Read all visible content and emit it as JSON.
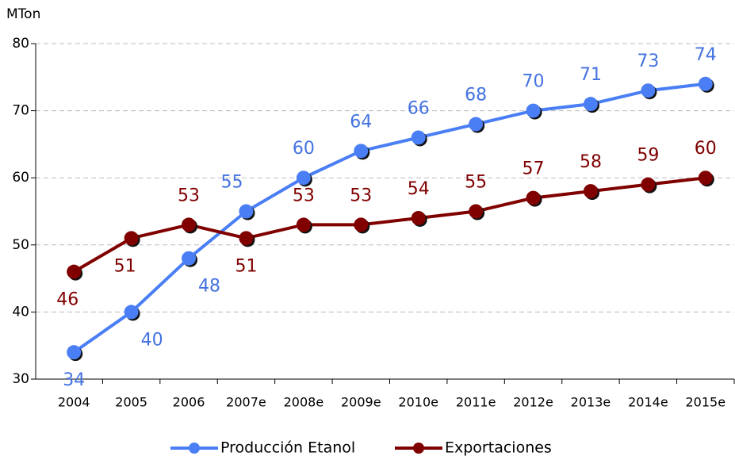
{
  "chart_data": {
    "type": "line",
    "y_label": "MTon",
    "categories": [
      "2004",
      "2005",
      "2006",
      "2007e",
      "2008e",
      "2009e",
      "2010e",
      "2011e",
      "2012e",
      "2013e",
      "2014e",
      "2015e"
    ],
    "series": [
      {
        "name": "Producción Etanol",
        "color": "#4a7ef5",
        "values": [
          34,
          40,
          48,
          55,
          60,
          64,
          66,
          68,
          70,
          71,
          73,
          74
        ]
      },
      {
        "name": "Exportaciones",
        "color": "#800000",
        "values": [
          46,
          51,
          53,
          51,
          53,
          53,
          54,
          55,
          57,
          58,
          59,
          60
        ]
      }
    ],
    "ylim": [
      30,
      80
    ],
    "yticks": [
      30,
      40,
      50,
      60,
      70,
      80
    ],
    "grid": true,
    "legend": "bottom"
  }
}
